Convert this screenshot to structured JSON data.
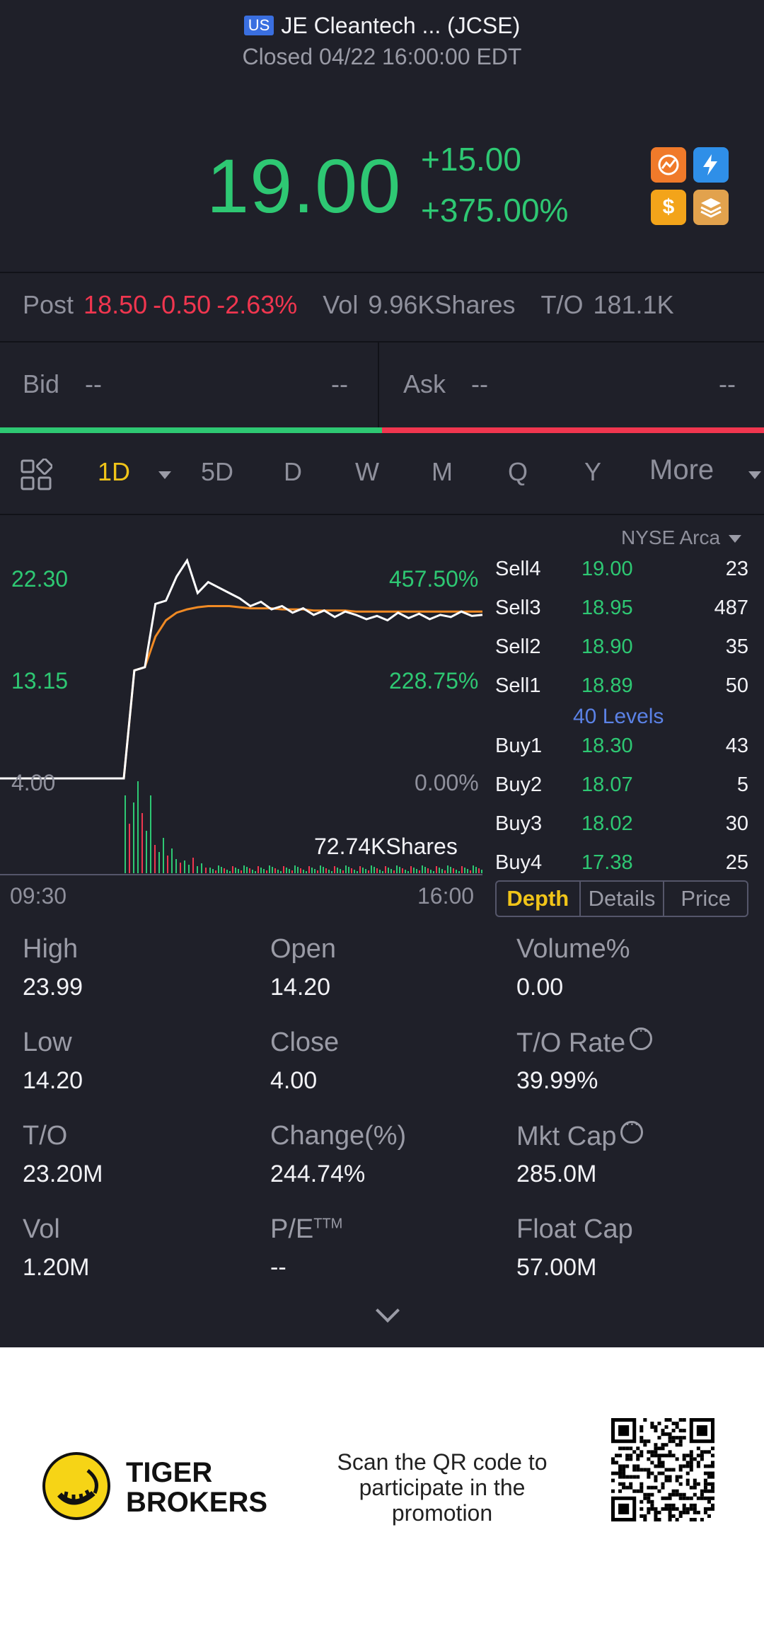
{
  "header": {
    "market_badge": "US",
    "title": "JE Cleantech ... (JCSE)",
    "status": "Closed 04/22 16:00:00 EDT",
    "price": "19.00",
    "change": "+15.00",
    "change_pct": "+375.00%",
    "quick_icons": [
      "chart-icon",
      "lightning-level1-icon",
      "dollar-icon",
      "stack-icon"
    ]
  },
  "post": {
    "label": "Post",
    "price": "18.50",
    "change": "-0.50",
    "change_pct": "-2.63%",
    "vol_label": "Vol",
    "vol_value": "9.96KShares",
    "to_label": "T/O",
    "to_value": "181.1K"
  },
  "bidask": {
    "bid_label": "Bid",
    "bid_price": "--",
    "bid_qty": "--",
    "ask_label": "Ask",
    "ask_price": "--",
    "ask_qty": "--"
  },
  "tabs": [
    "1D",
    "5D",
    "D",
    "W",
    "M",
    "Q",
    "Y",
    "More"
  ],
  "active_tab": "1D",
  "chart_data": {
    "type": "line",
    "y_ticks": [
      "22.30",
      "13.15",
      "4.00"
    ],
    "pct_ticks": [
      "457.50%",
      "228.75%",
      "0.00%"
    ],
    "x_ticks": [
      "09:30",
      "16:00"
    ],
    "volume_label": "72.74KShares",
    "ylim": [
      4.0,
      22.3
    ],
    "series": [
      {
        "values": [
          4.0,
          4.0,
          4.0,
          4.0,
          4.0,
          4.0,
          13.9,
          14.2,
          20.0,
          20.3,
          22.5,
          23.99,
          21.0,
          22.0,
          21.5,
          21.0,
          20.5,
          19.8,
          20.2,
          19.5,
          19.8,
          19.2,
          19.6,
          19.0,
          19.4,
          18.8,
          19.3,
          19.0,
          18.6,
          18.9,
          18.5,
          19.2,
          18.7,
          19.1,
          18.6,
          19.0,
          18.8,
          19.3,
          18.9,
          19.0
        ]
      },
      {
        "values": [
          4.0,
          4.0,
          4.0,
          4.0,
          4.0,
          4.0,
          13.9,
          14.2,
          17.0,
          18.5,
          19.2,
          19.5,
          19.7,
          19.8,
          19.8,
          19.8,
          19.7,
          19.6,
          19.6,
          19.6,
          19.5,
          19.5,
          19.5,
          19.4,
          19.4,
          19.4,
          19.4,
          19.3,
          19.3,
          19.3,
          19.3,
          19.3,
          19.3,
          19.3,
          19.3,
          19.3,
          19.3,
          19.3,
          19.3,
          19.3
        ]
      }
    ]
  },
  "orderbook": {
    "exchange": "NYSE Arca",
    "sells": [
      {
        "side": "Sell4",
        "price": "19.00",
        "qty": "23"
      },
      {
        "side": "Sell3",
        "price": "18.95",
        "qty": "487"
      },
      {
        "side": "Sell2",
        "price": "18.90",
        "qty": "35"
      },
      {
        "side": "Sell1",
        "price": "18.89",
        "qty": "50"
      }
    ],
    "levels_label": "40 Levels",
    "buys": [
      {
        "side": "Buy1",
        "price": "18.30",
        "qty": "43"
      },
      {
        "side": "Buy2",
        "price": "18.07",
        "qty": "5"
      },
      {
        "side": "Buy3",
        "price": "18.02",
        "qty": "30"
      },
      {
        "side": "Buy4",
        "price": "17.38",
        "qty": "25"
      }
    ],
    "tabs": [
      "Depth",
      "Details",
      "Price"
    ]
  },
  "stats": [
    {
      "label": "High",
      "value": "23.99"
    },
    {
      "label": "Open",
      "value": "14.20"
    },
    {
      "label": "Volume%",
      "value": "0.00"
    },
    {
      "label": "Low",
      "value": "14.20"
    },
    {
      "label": "Close",
      "value": "4.00"
    },
    {
      "label": "T/O Rate",
      "value": "39.99%"
    },
    {
      "label": "T/O",
      "value": "23.20M"
    },
    {
      "label": "Change(%)",
      "value": "244.74%"
    },
    {
      "label": "Mkt Cap",
      "value": "285.0M"
    },
    {
      "label": "Vol",
      "value": "1.20M"
    },
    {
      "label": "P/E",
      "label_sup": "TTM",
      "value": "--"
    },
    {
      "label": "Float Cap",
      "value": "57.00M"
    }
  ],
  "footer": {
    "brand_line1": "TIGER",
    "brand_line2": "BROKERS",
    "promo_text": "Scan the QR code to participate in the promotion"
  },
  "colors": {
    "up": "#2ec873",
    "down": "#f0364f",
    "accent": "#f0c419",
    "link": "#5b82e6",
    "background": "#1f2029"
  }
}
